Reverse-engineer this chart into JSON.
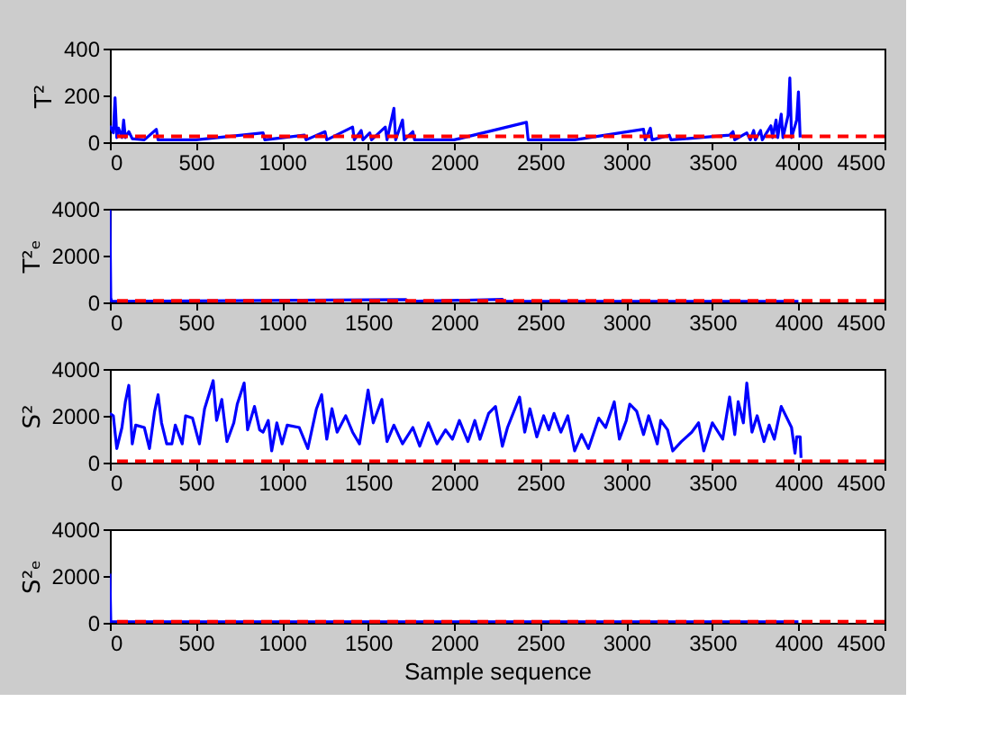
{
  "chart_data": [
    {
      "type": "line",
      "ylabel": "T²",
      "xlim": [
        0,
        4500
      ],
      "xticks": [
        0,
        500,
        1000,
        1500,
        2000,
        2500,
        3000,
        3500,
        4000,
        4500
      ],
      "ylim": [
        0,
        400
      ],
      "yticks": [
        0,
        200,
        400
      ],
      "grid": false,
      "marker": "none",
      "line_style": "solid",
      "tick_labels": true,
      "x": [
        0,
        20,
        30,
        40,
        50,
        70,
        80,
        90,
        110,
        130,
        200,
        270,
        280,
        500,
        890,
        900,
        1130,
        1140,
        1250,
        1260,
        1410,
        1420,
        1460,
        1470,
        1510,
        1520,
        1600,
        1610,
        1650,
        1660,
        1700,
        1710,
        1760,
        1770,
        2000,
        2420,
        2430,
        2700,
        3100,
        3110,
        3140,
        3150,
        3250,
        3260,
        3600,
        3620,
        3630,
        3700,
        3720,
        3740,
        3750,
        3780,
        3790,
        3840,
        3850,
        3870,
        3880,
        3900,
        3910,
        3940,
        3950,
        3960,
        3990,
        4000,
        4010
      ],
      "series": [
        {
          "color": "#0000ff",
          "values": [
            70,
            40,
            190,
            20,
            60,
            20,
            95,
            20,
            45,
            15,
            10,
            55,
            10,
            10,
            40,
            10,
            30,
            10,
            45,
            10,
            65,
            10,
            50,
            10,
            40,
            10,
            65,
            10,
            145,
            10,
            95,
            10,
            45,
            10,
            10,
            85,
            10,
            10,
            55,
            10,
            60,
            10,
            30,
            10,
            30,
            45,
            10,
            40,
            10,
            50,
            10,
            50,
            10,
            70,
            20,
            95,
            20,
            120,
            20,
            115,
            275,
            20,
            95,
            215,
            20
          ]
        }
      ],
      "ref_lines": [
        {
          "axis": "y",
          "value": 25,
          "color": "#ff0000",
          "line_style": "dashed"
        }
      ]
    },
    {
      "type": "line",
      "ylabel": "T²ₑ",
      "xlim": [
        0,
        4500
      ],
      "xticks": [
        0,
        500,
        1000,
        1500,
        2000,
        2500,
        3000,
        3500,
        4000,
        4500
      ],
      "ylim": [
        0,
        4000
      ],
      "yticks": [
        0,
        2000,
        4000
      ],
      "grid": false,
      "marker": "none",
      "line_style": "solid",
      "x": [
        0,
        5,
        10,
        1720,
        1730,
        2280,
        2290,
        4000
      ],
      "series": [
        {
          "color": "#0000ff",
          "values": [
            3950,
            200,
            40,
            120,
            40,
            130,
            40,
            40
          ]
        }
      ],
      "ref_lines": [
        {
          "axis": "y",
          "value": 70,
          "color": "#ff0000",
          "line_style": "dashed"
        }
      ]
    },
    {
      "type": "line",
      "ylabel": "S²",
      "xlim": [
        0,
        4500
      ],
      "xticks": [
        0,
        500,
        1000,
        1500,
        2000,
        2500,
        3000,
        3500,
        4000,
        4500
      ],
      "ylim": [
        0,
        4000
      ],
      "yticks": [
        0,
        2000,
        4000
      ],
      "grid": false,
      "marker": "none",
      "line_style": "solid",
      "x": [
        0,
        20,
        40,
        70,
        90,
        110,
        130,
        150,
        200,
        230,
        260,
        280,
        300,
        330,
        360,
        380,
        420,
        440,
        480,
        520,
        550,
        600,
        620,
        650,
        680,
        720,
        740,
        780,
        800,
        840,
        870,
        890,
        920,
        940,
        970,
        1000,
        1030,
        1100,
        1150,
        1200,
        1230,
        1260,
        1290,
        1320,
        1370,
        1410,
        1450,
        1500,
        1530,
        1580,
        1610,
        1650,
        1700,
        1760,
        1800,
        1850,
        1900,
        1950,
        1990,
        2030,
        2080,
        2120,
        2150,
        2200,
        2240,
        2280,
        2310,
        2380,
        2410,
        2440,
        2480,
        2520,
        2550,
        2580,
        2620,
        2660,
        2700,
        2740,
        2780,
        2840,
        2880,
        2930,
        2960,
        3000,
        3020,
        3060,
        3100,
        3130,
        3180,
        3200,
        3240,
        3270,
        3320,
        3380,
        3420,
        3450,
        3500,
        3560,
        3600,
        3630,
        3650,
        3680,
        3700,
        3730,
        3760,
        3800,
        3830,
        3860,
        3900,
        3920,
        3960,
        3980,
        3990,
        4010,
        4015
      ],
      "series": [
        {
          "color": "#0000ff",
          "values": [
            2100,
            2000,
            600,
            1500,
            2600,
            3300,
            800,
            1600,
            1500,
            600,
            2200,
            2900,
            1700,
            800,
            800,
            1600,
            800,
            2000,
            1900,
            800,
            2300,
            3500,
            1800,
            2700,
            900,
            1700,
            2500,
            3400,
            1400,
            2400,
            1400,
            1300,
            1800,
            500,
            1700,
            800,
            1600,
            1500,
            600,
            2300,
            2900,
            1000,
            2300,
            1300,
            2000,
            1300,
            800,
            3100,
            1700,
            2700,
            900,
            1600,
            800,
            1500,
            700,
            1700,
            800,
            1400,
            1000,
            1800,
            900,
            1800,
            1000,
            2100,
            2400,
            700,
            1500,
            2800,
            1300,
            2300,
            1100,
            2000,
            1400,
            2100,
            1300,
            2000,
            500,
            1200,
            600,
            1900,
            1500,
            2600,
            1000,
            1800,
            2500,
            2200,
            1200,
            2000,
            800,
            1800,
            1400,
            500,
            900,
            1300,
            1700,
            500,
            1700,
            1000,
            2800,
            1200,
            2600,
            1700,
            3400,
            1300,
            2000,
            900,
            1600,
            1000,
            2400,
            2100,
            1500,
            400,
            1100,
            1100,
            200
          ]
        }
      ],
      "ref_lines": [
        {
          "axis": "y",
          "value": 60,
          "color": "#ff0000",
          "line_style": "dashed"
        }
      ]
    },
    {
      "type": "line",
      "ylabel": "S²ₑ",
      "xlabel": "Sample sequence",
      "xlim": [
        0,
        4500
      ],
      "xticks": [
        0,
        500,
        1000,
        1500,
        2000,
        2500,
        3000,
        3500,
        4000,
        4500
      ],
      "ylim": [
        0,
        4000
      ],
      "yticks": [
        0,
        2000,
        4000
      ],
      "grid": false,
      "marker": "none",
      "line_style": "solid",
      "x": [
        0,
        5,
        4000
      ],
      "series": [
        {
          "color": "#0000ff",
          "values": [
            2100,
            40,
            40
          ]
        }
      ],
      "ref_lines": [
        {
          "axis": "y",
          "value": 50,
          "color": "#ff0000",
          "line_style": "dashed"
        }
      ]
    }
  ]
}
